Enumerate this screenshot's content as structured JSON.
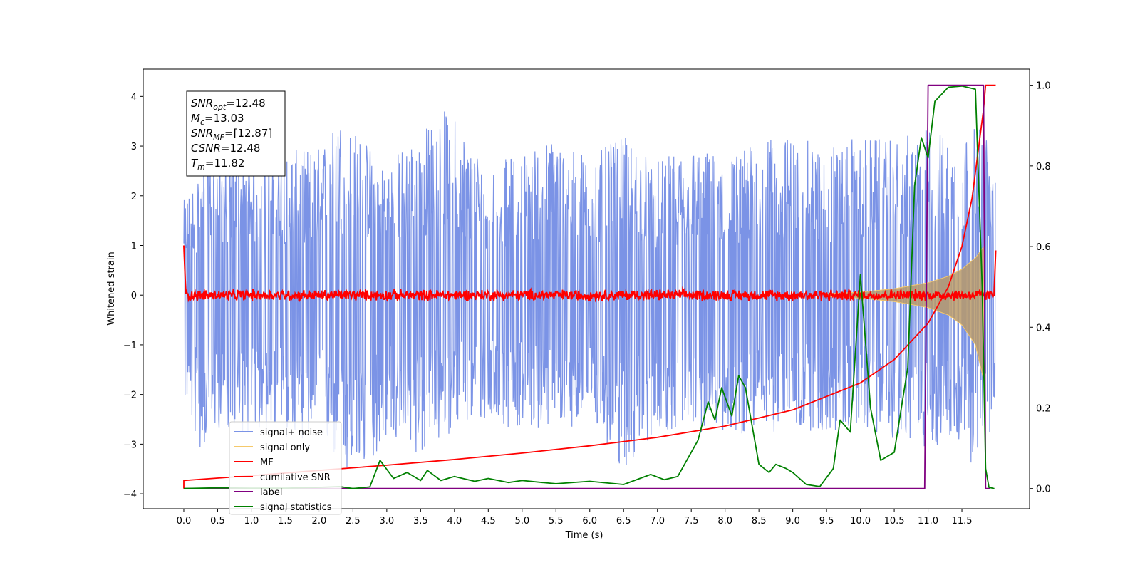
{
  "chart_data": {
    "type": "line",
    "title": "",
    "xlabel": "Time (s)",
    "ylabel": "Whitened strain",
    "xlim": [
      -0.6,
      12.5
    ],
    "ylim": [
      -4.3,
      4.55
    ],
    "ylim_right": [
      -0.05,
      1.04
    ],
    "xticks": [
      0.0,
      0.5,
      1.0,
      1.5,
      2.0,
      2.5,
      3.0,
      3.5,
      4.0,
      4.5,
      5.0,
      5.5,
      6.0,
      6.5,
      7.0,
      7.5,
      8.0,
      8.5,
      9.0,
      9.5,
      10.0,
      10.5,
      11.0,
      11.5
    ],
    "xtick_labels": [
      "0.0",
      "0.5",
      "1.0",
      "1.5",
      "2.0",
      "2.5",
      "3.0",
      "3.5",
      "4.0",
      "4.5",
      "5.0",
      "5.5",
      "6.0",
      "6.5",
      "7.0",
      "7.5",
      "8.0",
      "8.5",
      "9.0",
      "9.5",
      "10.0",
      "10.5",
      "11.0",
      "11.5"
    ],
    "yticks": [
      -4,
      -3,
      -2,
      -1,
      0,
      1,
      2,
      3,
      4
    ],
    "ytick_labels": [
      "−4",
      "−3",
      "−2",
      "−1",
      "0",
      "1",
      "2",
      "3",
      "4"
    ],
    "yticks_right": [
      0.0,
      0.2,
      0.4,
      0.6,
      0.8,
      1.0
    ],
    "ytick_labels_right": [
      "0.0",
      "0.2",
      "0.4",
      "0.6",
      "0.8",
      "1.0"
    ],
    "grid": false,
    "legend_position": "bottom-left",
    "info_box": {
      "lines": [
        {
          "base": "SNR",
          "sub": "opt",
          "rest": "=12.48"
        },
        {
          "base": "M",
          "sub": "c",
          "rest": "=13.03"
        },
        {
          "base": "SNR",
          "sub": "MF",
          "rest": "=[12.87]"
        },
        {
          "base": "CSNR",
          "sub": "",
          "rest": "=12.48"
        },
        {
          "base": "T",
          "sub": "m",
          "rest": "=11.82"
        }
      ]
    },
    "series": [
      {
        "name": "signal+ noise",
        "color": "#7b93e6",
        "axis": "left",
        "envelope_upper": [
          [
            0.0,
            1.9
          ],
          [
            0.25,
            2.6
          ],
          [
            0.5,
            2.9
          ],
          [
            1.0,
            2.8
          ],
          [
            1.5,
            2.9
          ],
          [
            2.0,
            3.0
          ],
          [
            2.3,
            3.6
          ],
          [
            3.0,
            2.7
          ],
          [
            3.9,
            3.8
          ],
          [
            4.5,
            2.6
          ],
          [
            5.0,
            2.9
          ],
          [
            5.5,
            3.2
          ],
          [
            6.0,
            2.8
          ],
          [
            6.5,
            3.2
          ],
          [
            7.0,
            2.7
          ],
          [
            7.5,
            3.0
          ],
          [
            8.0,
            2.8
          ],
          [
            8.5,
            3.1
          ],
          [
            9.0,
            3.2
          ],
          [
            9.5,
            3.0
          ],
          [
            10.0,
            3.2
          ],
          [
            10.5,
            3.1
          ],
          [
            11.0,
            3.4
          ],
          [
            11.5,
            3.2
          ],
          [
            11.82,
            3.5
          ],
          [
            12.0,
            2.3
          ]
        ],
        "envelope_lower": [
          [
            0.0,
            -2.1
          ],
          [
            0.25,
            -3.2
          ],
          [
            0.5,
            -2.7
          ],
          [
            1.0,
            -2.8
          ],
          [
            1.5,
            -2.9
          ],
          [
            2.0,
            -2.9
          ],
          [
            2.5,
            -3.9
          ],
          [
            3.0,
            -2.9
          ],
          [
            3.5,
            -3.3
          ],
          [
            4.0,
            -2.7
          ],
          [
            4.5,
            -2.6
          ],
          [
            5.0,
            -2.7
          ],
          [
            5.5,
            -2.7
          ],
          [
            6.0,
            -2.6
          ],
          [
            6.5,
            -3.6
          ],
          [
            7.0,
            -2.7
          ],
          [
            7.5,
            -2.8
          ],
          [
            8.0,
            -2.8
          ],
          [
            8.5,
            -2.8
          ],
          [
            9.0,
            -2.7
          ],
          [
            9.5,
            -2.8
          ],
          [
            10.0,
            -2.7
          ],
          [
            10.5,
            -2.9
          ],
          [
            11.0,
            -3.1
          ],
          [
            11.5,
            -3.0
          ],
          [
            11.82,
            -3.9
          ],
          [
            12.0,
            -2.4
          ]
        ]
      },
      {
        "name": "signal only",
        "color": "#f5c96b",
        "axis": "left",
        "envelope_upper": [
          [
            9.5,
            0.03
          ],
          [
            10.0,
            0.06
          ],
          [
            10.5,
            0.13
          ],
          [
            11.0,
            0.25
          ],
          [
            11.3,
            0.38
          ],
          [
            11.5,
            0.52
          ],
          [
            11.7,
            0.75
          ],
          [
            11.82,
            0.97
          ]
        ],
        "envelope_lower": [
          [
            9.5,
            -0.03
          ],
          [
            10.0,
            -0.06
          ],
          [
            10.5,
            -0.13
          ],
          [
            11.0,
            -0.25
          ],
          [
            11.3,
            -0.4
          ],
          [
            11.5,
            -0.6
          ],
          [
            11.7,
            -1.0
          ],
          [
            11.82,
            -1.7
          ]
        ]
      },
      {
        "name": "MF",
        "color": "#ff0000",
        "axis": "left",
        "points": [
          [
            0.0,
            1.0
          ],
          [
            0.03,
            -0.05
          ],
          [
            1.0,
            0.05
          ],
          [
            2.0,
            -0.05
          ],
          [
            3.0,
            0.04
          ],
          [
            4.0,
            -0.04
          ],
          [
            5.0,
            0.05
          ],
          [
            6.0,
            -0.04
          ],
          [
            7.0,
            0.05
          ],
          [
            8.0,
            -0.04
          ],
          [
            9.0,
            0.05
          ],
          [
            10.0,
            -0.05
          ],
          [
            11.0,
            0.04
          ],
          [
            11.82,
            0.05
          ],
          [
            11.98,
            -0.05
          ],
          [
            12.0,
            0.9
          ]
        ],
        "noise_amplitude": 0.13
      },
      {
        "name": "cumilative SNR",
        "color": "#ff0000",
        "axis": "right",
        "points": [
          [
            0.0,
            0.0
          ],
          [
            0.0,
            0.02
          ],
          [
            1.0,
            0.032
          ],
          [
            2.0,
            0.045
          ],
          [
            3.0,
            0.058
          ],
          [
            4.0,
            0.072
          ],
          [
            5.0,
            0.088
          ],
          [
            6.0,
            0.106
          ],
          [
            7.0,
            0.127
          ],
          [
            8.0,
            0.155
          ],
          [
            9.0,
            0.195
          ],
          [
            10.0,
            0.262
          ],
          [
            10.5,
            0.32
          ],
          [
            11.0,
            0.41
          ],
          [
            11.3,
            0.5
          ],
          [
            11.5,
            0.6
          ],
          [
            11.65,
            0.72
          ],
          [
            11.75,
            0.85
          ],
          [
            11.82,
            0.94
          ],
          [
            11.85,
            1.0
          ],
          [
            12.0,
            1.0
          ]
        ]
      },
      {
        "name": "label",
        "color": "#800080",
        "axis": "right",
        "points": [
          [
            0.0,
            0.0
          ],
          [
            10.95,
            0.0
          ],
          [
            11.0,
            1.0
          ],
          [
            11.82,
            1.0
          ],
          [
            11.85,
            0.0
          ],
          [
            11.92,
            0.0
          ]
        ]
      },
      {
        "name": "signal statistics",
        "color": "#008000",
        "axis": "right",
        "points": [
          [
            0.0,
            0.0
          ],
          [
            0.5,
            0.002
          ],
          [
            1.0,
            0.001
          ],
          [
            1.5,
            0.001
          ],
          [
            2.0,
            0.003
          ],
          [
            2.3,
            0.005
          ],
          [
            2.5,
            0.0
          ],
          [
            2.75,
            0.004
          ],
          [
            2.9,
            0.07
          ],
          [
            3.1,
            0.025
          ],
          [
            3.3,
            0.04
          ],
          [
            3.5,
            0.02
          ],
          [
            3.6,
            0.045
          ],
          [
            3.8,
            0.02
          ],
          [
            4.0,
            0.03
          ],
          [
            4.3,
            0.018
          ],
          [
            4.5,
            0.025
          ],
          [
            4.8,
            0.015
          ],
          [
            5.0,
            0.02
          ],
          [
            5.3,
            0.015
          ],
          [
            5.5,
            0.012
          ],
          [
            6.0,
            0.018
          ],
          [
            6.5,
            0.01
          ],
          [
            6.9,
            0.035
          ],
          [
            7.1,
            0.022
          ],
          [
            7.3,
            0.03
          ],
          [
            7.6,
            0.12
          ],
          [
            7.75,
            0.215
          ],
          [
            7.85,
            0.17
          ],
          [
            7.95,
            0.25
          ],
          [
            8.1,
            0.18
          ],
          [
            8.2,
            0.28
          ],
          [
            8.3,
            0.25
          ],
          [
            8.5,
            0.06
          ],
          [
            8.65,
            0.04
          ],
          [
            8.75,
            0.06
          ],
          [
            8.9,
            0.05
          ],
          [
            9.0,
            0.04
          ],
          [
            9.2,
            0.01
          ],
          [
            9.4,
            0.005
          ],
          [
            9.6,
            0.05
          ],
          [
            9.7,
            0.17
          ],
          [
            9.85,
            0.14
          ],
          [
            10.0,
            0.53
          ],
          [
            10.15,
            0.2
          ],
          [
            10.3,
            0.07
          ],
          [
            10.5,
            0.09
          ],
          [
            10.7,
            0.3
          ],
          [
            10.8,
            0.75
          ],
          [
            10.9,
            0.87
          ],
          [
            11.0,
            0.82
          ],
          [
            11.1,
            0.96
          ],
          [
            11.3,
            0.995
          ],
          [
            11.5,
            0.998
          ],
          [
            11.7,
            0.99
          ],
          [
            11.8,
            0.5
          ],
          [
            11.85,
            0.05
          ],
          [
            11.9,
            0.003
          ],
          [
            11.98,
            0.0
          ]
        ]
      }
    ]
  }
}
